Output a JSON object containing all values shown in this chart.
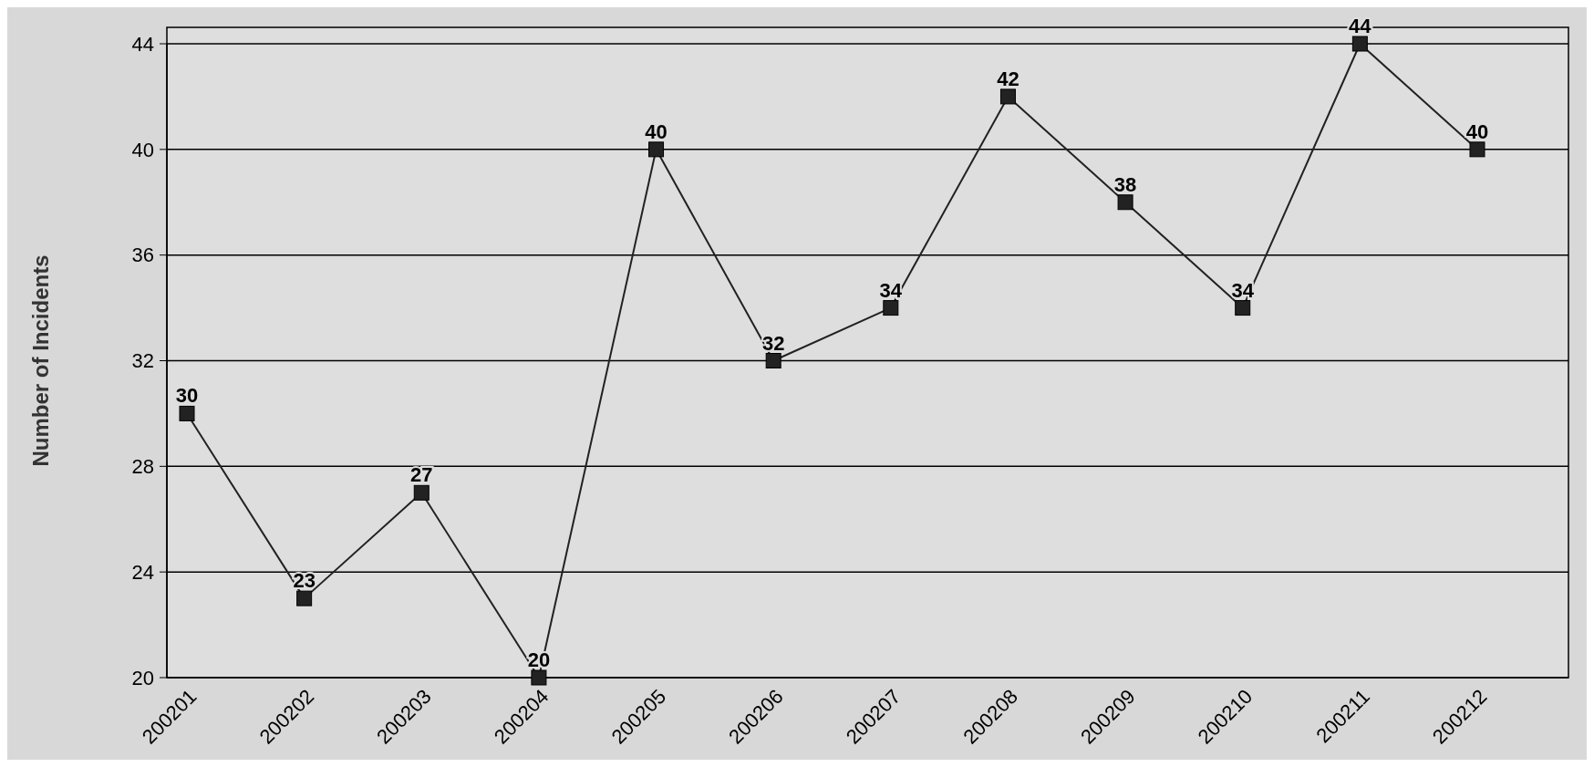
{
  "chart_data": {
    "type": "line",
    "ylabel": "Number of Incidents",
    "categories": [
      "200201",
      "200202",
      "200203",
      "200204",
      "200205",
      "200206",
      "200207",
      "200208",
      "200209",
      "200210",
      "200211",
      "200212"
    ],
    "series": [
      {
        "color": "#222222",
        "values": [
          30,
          23,
          27,
          20,
          40,
          32,
          34,
          42,
          38,
          34,
          44,
          40
        ]
      }
    ],
    "ylim": [
      20,
      44
    ],
    "yticks": [
      20,
      24,
      28,
      32,
      36,
      40,
      44
    ],
    "grid": "y",
    "marker": "square",
    "data_labels": true,
    "line_style": "solid"
  }
}
